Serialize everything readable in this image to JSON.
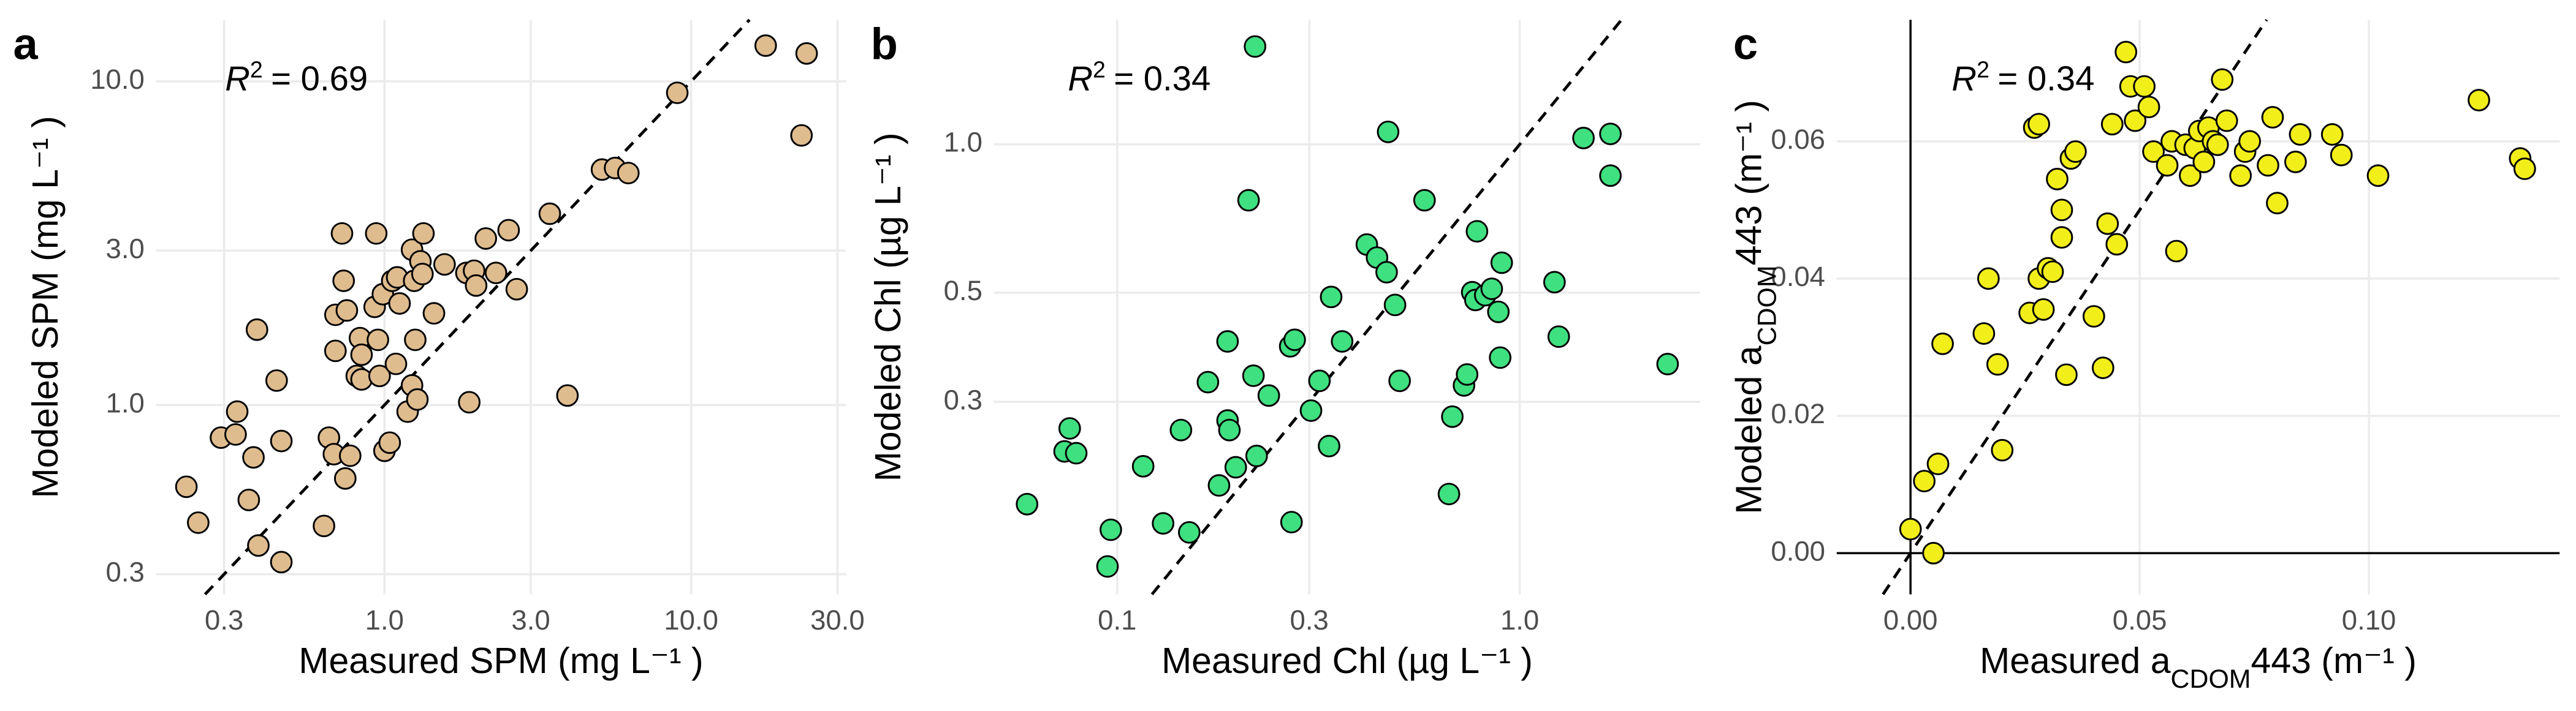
{
  "chart_data": [
    {
      "type": "scatter",
      "panel_label": "a",
      "annotation": [
        "R",
        "2",
        "= 0.69"
      ],
      "x_label": [
        "Measured SPM (mg L⁻¹ )"
      ],
      "y_label": [
        "Modeled SPM (mg L⁻¹ )"
      ],
      "xscale": "log",
      "yscale": "log",
      "grid": true,
      "color": "#dfbc8e",
      "xlim": [
        0.18,
        32
      ],
      "ylim": [
        0.26,
        15.5
      ],
      "xticks": [
        0.3,
        {
          "value": 1,
          "label": "1.0"
        },
        {
          "value": 3,
          "label": "3.0"
        },
        {
          "value": 10,
          "label": "10.0"
        },
        {
          "value": 30,
          "label": "30.0"
        }
      ],
      "yticks": [
        0.3,
        {
          "value": 1,
          "label": "1.0"
        },
        {
          "value": 3,
          "label": "3.0"
        },
        {
          "value": 10,
          "label": "10.0"
        }
      ],
      "x": [
        0.226,
        0.247,
        0.293,
        0.327,
        0.331,
        0.361,
        0.374,
        0.384,
        0.388,
        0.445,
        0.461,
        0.461,
        0.635,
        0.659,
        0.684,
        0.692,
        0.692,
        0.727,
        0.736,
        0.745,
        0.754,
        0.773,
        0.812,
        0.832,
        0.842,
        0.842,
        0.929,
        0.94,
        0.952,
        0.964,
        0.988,
        1.0,
        1.04,
        1.06,
        1.09,
        1.1,
        1.12,
        1.19,
        1.23,
        1.23,
        1.26,
        1.25,
        1.28,
        1.31,
        1.33,
        1.34,
        1.45,
        1.57,
        1.85,
        1.89,
        1.96,
        1.99,
        2.14,
        2.31,
        2.54,
        2.7,
        3.46,
        3.95,
        5.12,
        5.65,
        6.24,
        9.01,
        17.5,
        22.9,
        23.8
      ],
      "values": [
        0.559,
        0.433,
        0.793,
        0.811,
        0.954,
        0.509,
        0.689,
        1.71,
        0.368,
        1.19,
        0.774,
        0.327,
        0.423,
        0.793,
        0.705,
        1.9,
        1.47,
        3.39,
        2.42,
        0.593,
        1.96,
        0.697,
        1.23,
        1.61,
        1.43,
        1.2,
        2.01,
        3.39,
        1.59,
        1.23,
        2.2,
        0.722,
        0.765,
        2.42,
        1.34,
        2.48,
        2.06,
        0.954,
        3.02,
        1.15,
        1.59,
        2.42,
        1.04,
        2.78,
        2.54,
        3.39,
        1.92,
        2.72,
        2.56,
        1.02,
        2.6,
        2.34,
        3.27,
        2.56,
        3.47,
        2.28,
        3.9,
        1.07,
        5.34,
        5.4,
        5.21,
        9.22,
        12.9,
        6.81,
        12.2
      ]
    },
    {
      "type": "scatter",
      "panel_label": "b",
      "annotation": [
        "R",
        "2",
        "= 0.34"
      ],
      "x_label": [
        "Measured Chl (µg L⁻¹ )"
      ],
      "y_label": [
        "Modeled Chl (µg L⁻¹ )"
      ],
      "xscale": "log",
      "yscale": "log",
      "grid": true,
      "color": "#3fe07f",
      "xlim": [
        0.0494,
        2.81
      ],
      "ylim": [
        0.122,
        1.79
      ],
      "xticks": [
        0.1,
        0.3,
        {
          "value": 1,
          "label": "1.0"
        }
      ],
      "yticks": [
        0.3,
        0.5,
        {
          "value": 1,
          "label": "1.0"
        }
      ],
      "x": [
        0.0597,
        0.074,
        0.0762,
        0.0791,
        0.0946,
        0.0964,
        0.116,
        0.13,
        0.144,
        0.151,
        0.168,
        0.179,
        0.188,
        0.188,
        0.19,
        0.197,
        0.212,
        0.22,
        0.222,
        0.218,
        0.238,
        0.269,
        0.271,
        0.276,
        0.303,
        0.318,
        0.336,
        0.34,
        0.362,
        0.417,
        0.442,
        0.467,
        0.471,
        0.49,
        0.503,
        0.58,
        0.667,
        0.68,
        0.727,
        0.74,
        0.762,
        0.776,
        0.783,
        0.821,
        0.852,
        0.885,
        0.894,
        0.902,
        1.22,
        1.25,
        1.44,
        1.68,
        1.68,
        2.33
      ],
      "values": [
        0.186,
        0.238,
        0.265,
        0.236,
        0.139,
        0.165,
        0.222,
        0.17,
        0.263,
        0.163,
        0.329,
        0.203,
        0.275,
        0.398,
        0.263,
        0.221,
        0.77,
        1.58,
        0.233,
        0.339,
        0.309,
        0.389,
        0.171,
        0.401,
        0.288,
        0.331,
        0.244,
        0.49,
        0.398,
        0.626,
        0.589,
        0.55,
        1.06,
        0.472,
        0.331,
        0.77,
        0.195,
        0.28,
        0.324,
        0.341,
        0.501,
        0.483,
        0.666,
        0.494,
        0.509,
        0.457,
        0.369,
        0.575,
        0.525,
        0.407,
        1.03,
        1.05,
        0.864,
        0.358
      ]
    },
    {
      "type": "scatter",
      "panel_label": "c",
      "annotation": [
        "R",
        "2",
        "= 0.34"
      ],
      "x_label": [
        "Measured a",
        "CDOM",
        "443 (m⁻¹ )"
      ],
      "y_label": [
        "Modeled a",
        "CDOM",
        "443 (m⁻¹ )"
      ],
      "xscale": "linear",
      "yscale": "linear",
      "grid": true,
      "zero_lines": true,
      "color": "#f2ee1a",
      "xlim": [
        -0.0161,
        0.1416
      ],
      "ylim": [
        -0.006,
        0.0777
      ],
      "xticks": [
        {
          "value": 0,
          "label": "0.00"
        },
        {
          "value": 0.05,
          "label": "0.05"
        },
        {
          "value": 0.1,
          "label": "0.10"
        }
      ],
      "yticks": [
        {
          "value": 0,
          "label": "0.00"
        },
        {
          "value": 0.02,
          "label": "0.02"
        },
        {
          "value": 0.04,
          "label": "0.04"
        },
        {
          "value": 0.06,
          "label": "0.06"
        }
      ],
      "x": [
        0.0,
        0.005,
        0.003,
        0.006,
        0.007,
        0.016,
        0.017,
        0.019,
        0.02,
        0.026,
        0.027,
        0.028,
        0.028,
        0.029,
        0.03,
        0.031,
        0.032,
        0.033,
        0.033,
        0.034,
        0.035,
        0.036,
        0.04,
        0.042,
        0.043,
        0.044,
        0.045,
        0.047,
        0.048,
        0.049,
        0.051,
        0.052,
        0.053,
        0.056,
        0.057,
        0.058,
        0.06,
        0.061,
        0.062,
        0.063,
        0.064,
        0.065,
        0.066,
        0.067,
        0.068,
        0.069,
        0.072,
        0.073,
        0.074,
        0.078,
        0.079,
        0.08,
        0.084,
        0.085,
        0.092,
        0.094,
        0.102,
        0.124,
        0.133,
        0.134
      ],
      "values": [
        0.0035,
        0.0,
        0.0105,
        0.013,
        0.0305,
        0.032,
        0.04,
        0.0275,
        0.015,
        0.035,
        0.062,
        0.0625,
        0.04,
        0.0355,
        0.0415,
        0.041,
        0.0545,
        0.046,
        0.05,
        0.026,
        0.0575,
        0.0585,
        0.0345,
        0.027,
        0.048,
        0.0625,
        0.045,
        0.073,
        0.068,
        0.063,
        0.068,
        0.065,
        0.0585,
        0.0565,
        0.06,
        0.044,
        0.0595,
        0.055,
        0.059,
        0.0615,
        0.057,
        0.062,
        0.06,
        0.0595,
        0.069,
        0.063,
        0.055,
        0.0585,
        0.06,
        0.0565,
        0.0635,
        0.051,
        0.057,
        0.061,
        0.061,
        0.058,
        0.055,
        0.066,
        0.0575,
        0.056
      ]
    }
  ]
}
